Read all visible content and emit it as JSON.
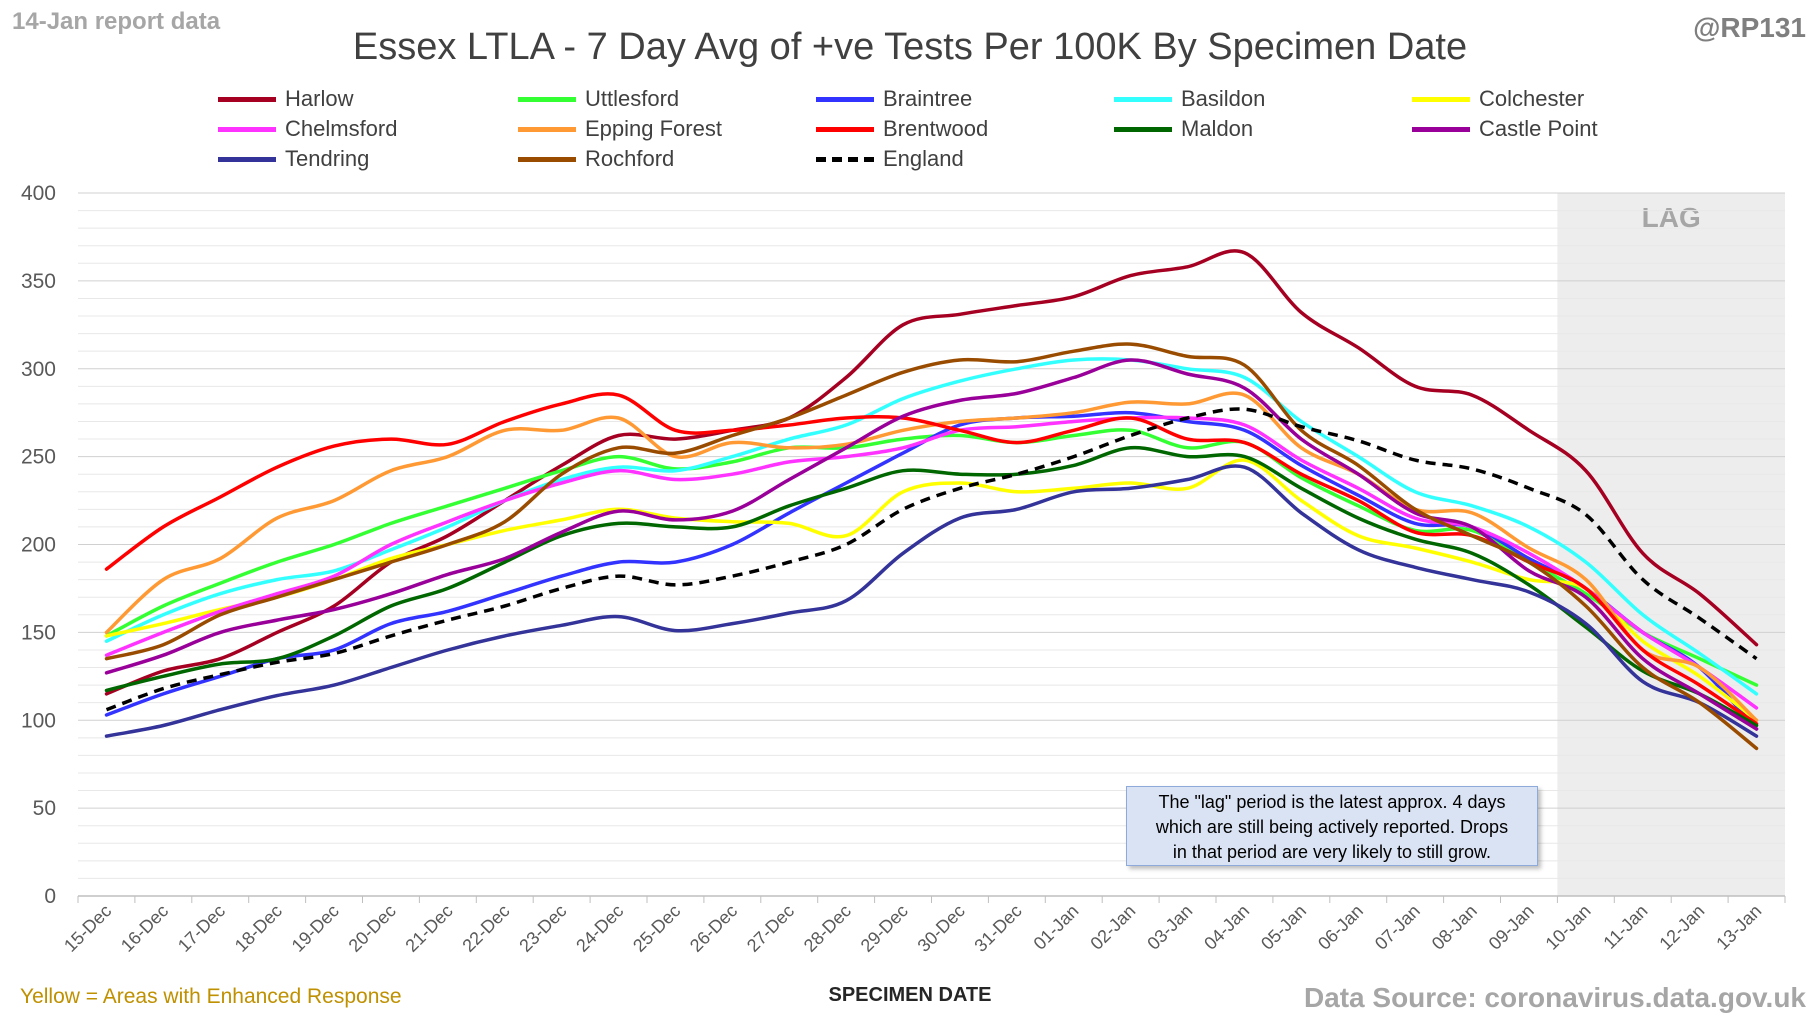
{
  "header": {
    "report_label": "14-Jan report data",
    "handle": "@RP131",
    "footnote": "Yellow = Areas with Enhanced Response",
    "source": "Data Source: coronavirus.data.gov.uk"
  },
  "note": {
    "lines": [
      "The \"lag\" period is the latest approx. 4 days",
      "which are still being actively reported. Drops",
      "in that period are very likely to still grow."
    ]
  },
  "chart_data": {
    "type": "line",
    "title": "Essex LTLA - 7 Day Avg of +ve Tests Per 100K By Specimen Date",
    "xlabel": "SPECIMEN DATE",
    "ylabel": "",
    "ylim": [
      0,
      400
    ],
    "yticks": [
      0,
      50,
      100,
      150,
      200,
      250,
      300,
      350,
      400
    ],
    "grid": true,
    "legend_position": "top",
    "lag_region": {
      "start": "10-Jan",
      "end": "13-Jan",
      "label": "LAG"
    },
    "categories": [
      "15-Dec",
      "16-Dec",
      "17-Dec",
      "18-Dec",
      "19-Dec",
      "20-Dec",
      "21-Dec",
      "22-Dec",
      "23-Dec",
      "24-Dec",
      "25-Dec",
      "26-Dec",
      "27-Dec",
      "28-Dec",
      "29-Dec",
      "30-Dec",
      "31-Dec",
      "01-Jan",
      "02-Jan",
      "03-Jan",
      "04-Jan",
      "05-Jan",
      "06-Jan",
      "07-Jan",
      "08-Jan",
      "09-Jan",
      "10-Jan",
      "11-Jan",
      "12-Jan",
      "13-Jan"
    ],
    "series": [
      {
        "name": "Harlow",
        "color": "#a50021",
        "dashed": false,
        "values": [
          115,
          128,
          135,
          150,
          165,
          190,
          205,
          225,
          245,
          262,
          260,
          265,
          272,
          295,
          325,
          331,
          336,
          341,
          353,
          358,
          366,
          332,
          312,
          290,
          285,
          265,
          242,
          195,
          172,
          143
        ]
      },
      {
        "name": "Uttlesford",
        "color": "#33ff33",
        "dashed": false,
        "values": [
          148,
          165,
          178,
          190,
          200,
          212,
          222,
          232,
          242,
          250,
          243,
          247,
          255,
          255,
          260,
          262,
          258,
          262,
          265,
          255,
          258,
          238,
          222,
          208,
          208,
          190,
          172,
          150,
          135,
          120
        ]
      },
      {
        "name": "Braintree",
        "color": "#3333ff",
        "dashed": false,
        "values": [
          103,
          115,
          125,
          135,
          140,
          155,
          162,
          172,
          182,
          190,
          190,
          200,
          218,
          235,
          252,
          268,
          272,
          273,
          275,
          270,
          265,
          245,
          228,
          212,
          210,
          192,
          175,
          150,
          130,
          95
        ]
      },
      {
        "name": "Basildon",
        "color": "#33ffff",
        "dashed": false,
        "values": [
          145,
          160,
          172,
          180,
          185,
          197,
          210,
          225,
          237,
          244,
          242,
          250,
          260,
          268,
          283,
          293,
          300,
          305,
          305,
          300,
          295,
          270,
          250,
          230,
          222,
          210,
          190,
          160,
          138,
          115
        ]
      },
      {
        "name": "Colchester",
        "color": "#ffff00",
        "dashed": false,
        "values": [
          148,
          155,
          163,
          170,
          180,
          192,
          200,
          208,
          214,
          220,
          215,
          213,
          212,
          205,
          230,
          235,
          230,
          232,
          235,
          232,
          248,
          225,
          205,
          198,
          190,
          180,
          175,
          145,
          125,
          100
        ]
      },
      {
        "name": "Chelmsford",
        "color": "#ff33ff",
        "dashed": false,
        "values": [
          137,
          150,
          162,
          172,
          182,
          200,
          213,
          225,
          235,
          242,
          237,
          240,
          247,
          250,
          255,
          265,
          267,
          270,
          272,
          272,
          268,
          248,
          232,
          215,
          210,
          195,
          175,
          150,
          130,
          107
        ]
      },
      {
        "name": "Epping Forest",
        "color": "#ff9933",
        "dashed": false,
        "values": [
          150,
          180,
          192,
          215,
          225,
          242,
          250,
          265,
          265,
          272,
          250,
          258,
          255,
          257,
          265,
          270,
          272,
          275,
          281,
          280,
          285,
          255,
          240,
          220,
          218,
          198,
          180,
          140,
          130,
          100
        ]
      },
      {
        "name": "Brentwood",
        "color": "#ff0000",
        "dashed": false,
        "values": [
          186,
          210,
          227,
          244,
          256,
          260,
          257,
          270,
          280,
          285,
          265,
          265,
          268,
          272,
          272,
          265,
          258,
          265,
          272,
          260,
          258,
          240,
          225,
          207,
          205,
          190,
          175,
          140,
          120,
          98
        ]
      },
      {
        "name": "Maldon",
        "color": "#006600",
        "dashed": false,
        "values": [
          117,
          125,
          132,
          135,
          148,
          165,
          175,
          190,
          205,
          212,
          210,
          210,
          222,
          232,
          242,
          240,
          240,
          245,
          255,
          250,
          250,
          232,
          215,
          203,
          195,
          177,
          153,
          128,
          115,
          97
        ]
      },
      {
        "name": "Castle Point",
        "color": "#990099",
        "dashed": false,
        "values": [
          127,
          137,
          150,
          157,
          163,
          172,
          183,
          192,
          207,
          219,
          214,
          219,
          237,
          255,
          273,
          282,
          286,
          295,
          305,
          297,
          289,
          260,
          240,
          218,
          210,
          185,
          170,
          135,
          115,
          95
        ]
      },
      {
        "name": "Tendring",
        "color": "#333399",
        "dashed": false,
        "values": [
          91,
          97,
          106,
          114,
          120,
          130,
          140,
          148,
          154,
          159,
          151,
          155,
          161,
          168,
          195,
          215,
          220,
          230,
          232,
          237,
          244,
          218,
          197,
          187,
          180,
          173,
          155,
          122,
          110,
          91
        ]
      },
      {
        "name": "Rochford",
        "color": "#994c00",
        "dashed": false,
        "values": [
          135,
          143,
          160,
          170,
          180,
          190,
          200,
          213,
          240,
          255,
          252,
          262,
          272,
          285,
          298,
          305,
          304,
          310,
          314,
          307,
          302,
          265,
          245,
          220,
          205,
          190,
          165,
          130,
          110,
          84
        ]
      },
      {
        "name": "England",
        "color": "#000000",
        "dashed": true,
        "values": [
          106,
          118,
          126,
          133,
          138,
          148,
          157,
          165,
          175,
          182,
          177,
          182,
          190,
          200,
          220,
          232,
          240,
          250,
          262,
          272,
          277,
          267,
          259,
          248,
          243,
          232,
          217,
          180,
          158,
          135
        ]
      }
    ]
  }
}
